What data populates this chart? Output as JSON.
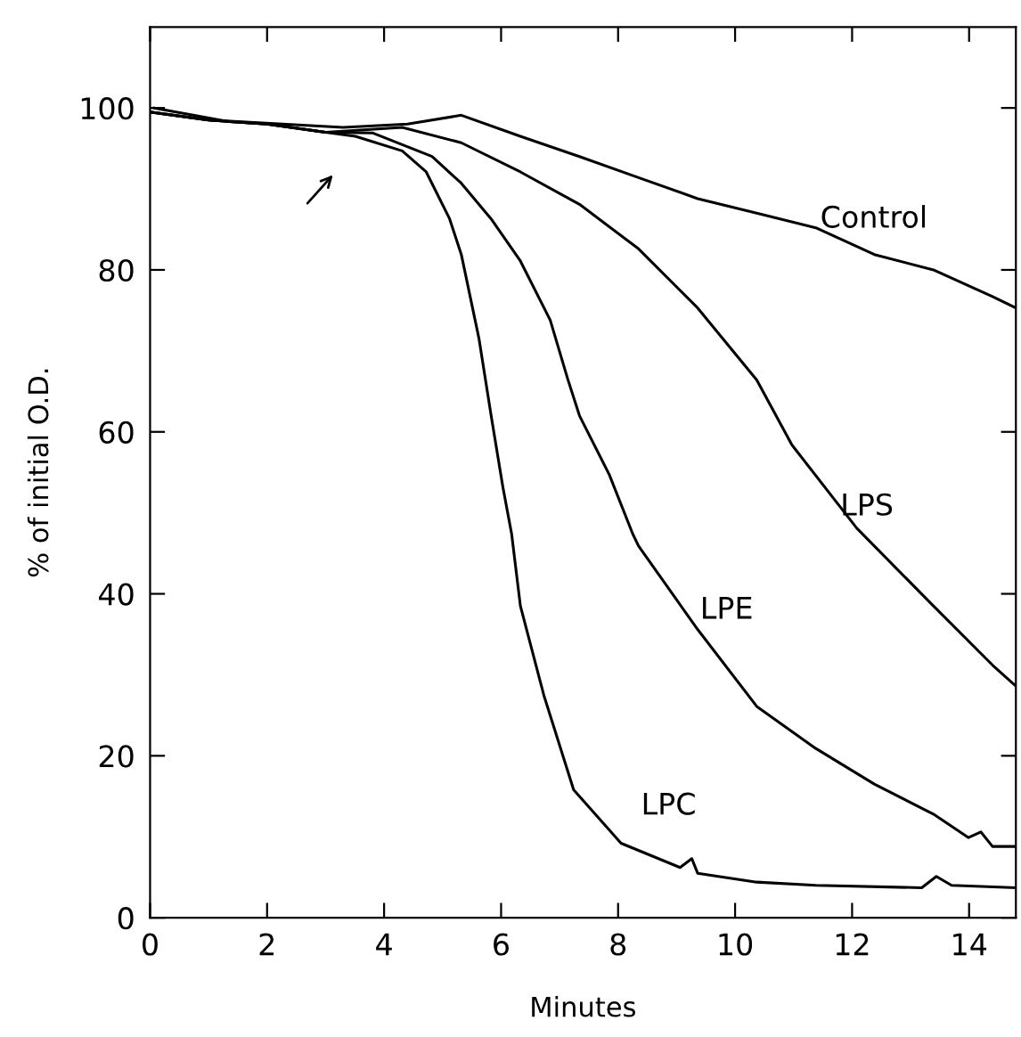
{
  "chart_data": {
    "type": "line",
    "xlabel": "Minutes",
    "ylabel": "% of initial O.D.",
    "xlim": [
      0,
      14.8
    ],
    "ylim": [
      0,
      110
    ],
    "xticks": [
      0,
      2,
      4,
      6,
      8,
      10,
      12,
      14
    ],
    "yticks": [
      0,
      20,
      40,
      60,
      80,
      100
    ],
    "grid": false,
    "legend": false,
    "marker": "none",
    "line_style": "solid",
    "series": [
      {
        "name": "Control",
        "color": "#000000",
        "x": [
          0.07,
          1.28,
          3.3,
          4.4,
          5.32,
          6.33,
          7.34,
          8.35,
          9.36,
          10.37,
          11.38,
          12.38,
          13.39,
          14.4,
          14.8
        ],
        "values": [
          100,
          98.4,
          97.6,
          98,
          99.1,
          96.5,
          94,
          91.4,
          88.8,
          87,
          85.2,
          81.9,
          80,
          76.7,
          75.3
        ]
      },
      {
        "name": "LPS",
        "color": "#000000",
        "x": [
          0,
          1,
          2,
          3,
          4.31,
          5.32,
          6.33,
          7.34,
          8.35,
          9.36,
          10.37,
          10.97,
          12.08,
          12.38,
          13.39,
          14.4,
          14.8
        ],
        "values": [
          99.5,
          98.5,
          98,
          97,
          97.6,
          95.7,
          92.1,
          88.1,
          82.6,
          75.3,
          66.4,
          58.4,
          48.1,
          45.9,
          38.5,
          31.2,
          28.6
        ]
      },
      {
        "name": "LPE",
        "color": "#000000",
        "x": [
          0,
          1,
          2,
          3,
          3.81,
          4.82,
          5.32,
          5.83,
          6.33,
          6.84,
          7.14,
          7.34,
          7.85,
          8.25,
          8.35,
          9.36,
          10.37,
          11.38,
          12.38,
          13.39,
          13.99,
          14.2,
          14.4,
          14.8
        ],
        "values": [
          99.5,
          98.5,
          98,
          97,
          96.9,
          94,
          90.7,
          86.3,
          81.1,
          73.8,
          66.5,
          62,
          54.7,
          47.4,
          45.9,
          35.6,
          26.1,
          20.9,
          16.5,
          12.8,
          9.9,
          10.6,
          8.8,
          8.8
        ]
      },
      {
        "name": "LPC",
        "color": "#000000",
        "x": [
          0,
          1,
          2,
          3,
          3.51,
          4.31,
          4.72,
          5.12,
          5.32,
          5.62,
          5.83,
          6.03,
          6.18,
          6.33,
          6.73,
          7.24,
          8.05,
          9.06,
          9.26,
          9.36,
          10.37,
          11.38,
          13.19,
          13.44,
          13.7,
          14.8
        ],
        "values": [
          99.5,
          98.5,
          98,
          97,
          96.5,
          94.7,
          92.1,
          86.3,
          81.9,
          71.6,
          62,
          53.2,
          47.4,
          38.5,
          27.5,
          15.8,
          9.2,
          6.2,
          7.3,
          5.5,
          4.4,
          4.0,
          3.7,
          5.1,
          4.0,
          3.7
        ]
      }
    ]
  }
}
